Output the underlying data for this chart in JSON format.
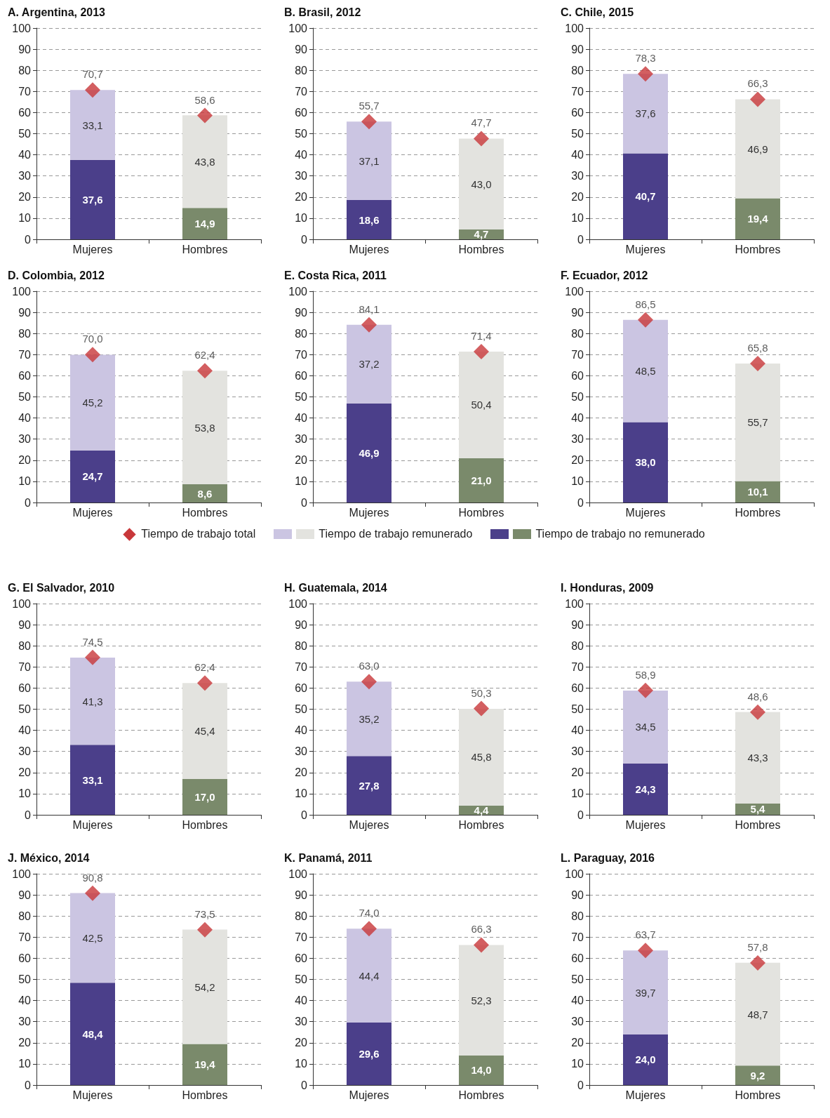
{
  "chart_data": [
    {
      "type": "bar",
      "title": "A. Argentina, 2013",
      "categories": [
        "Mujeres",
        "Hombres"
      ],
      "stacked": true,
      "grid": "y",
      "ylim": [
        0,
        100
      ],
      "yticks": [
        0,
        10,
        20,
        30,
        40,
        50,
        60,
        70,
        80,
        90,
        100
      ],
      "series": [
        {
          "colors": [
            "#4b3f8a",
            "#7a8a6b"
          ],
          "values": [
            37.6,
            14.9
          ],
          "value_labels": [
            "37,6",
            "14,9"
          ]
        },
        {
          "colors": [
            "#cbc5e2",
            "#e3e3df"
          ],
          "values": [
            33.1,
            43.8
          ],
          "value_labels": [
            "33,1",
            "43,8"
          ]
        },
        {
          "type": "scatter",
          "marker": "diamond",
          "color": "#c8373a",
          "x": [
            "Mujeres",
            "Hombres"
          ],
          "values": [
            70.7,
            58.6
          ],
          "value_labels": [
            "70,7",
            "58,6"
          ]
        }
      ]
    },
    {
      "type": "bar",
      "title": "B. Brasil, 2012",
      "categories": [
        "Mujeres",
        "Hombres"
      ],
      "stacked": true,
      "grid": "y",
      "ylim": [
        0,
        100
      ],
      "yticks": [
        0,
        10,
        20,
        30,
        40,
        50,
        60,
        70,
        80,
        90,
        100
      ],
      "series": [
        {
          "colors": [
            "#4b3f8a",
            "#7a8a6b"
          ],
          "values": [
            18.6,
            4.7
          ],
          "value_labels": [
            "18,6",
            "4,7"
          ]
        },
        {
          "colors": [
            "#cbc5e2",
            "#e3e3df"
          ],
          "values": [
            37.1,
            43.0
          ],
          "value_labels": [
            "37,1",
            "43,0"
          ]
        },
        {
          "type": "scatter",
          "marker": "diamond",
          "color": "#c8373a",
          "x": [
            "Mujeres",
            "Hombres"
          ],
          "values": [
            55.7,
            47.7
          ],
          "value_labels": [
            "55,7",
            "47,7"
          ]
        }
      ]
    },
    {
      "type": "bar",
      "title": "C. Chile, 2015",
      "categories": [
        "Mujeres",
        "Hombres"
      ],
      "stacked": true,
      "grid": "y",
      "ylim": [
        0,
        100
      ],
      "yticks": [
        0,
        10,
        20,
        30,
        40,
        50,
        60,
        70,
        80,
        90,
        100
      ],
      "series": [
        {
          "colors": [
            "#4b3f8a",
            "#7a8a6b"
          ],
          "values": [
            40.7,
            19.4
          ],
          "value_labels": [
            "40,7",
            "19,4"
          ]
        },
        {
          "colors": [
            "#cbc5e2",
            "#e3e3df"
          ],
          "values": [
            37.6,
            46.9
          ],
          "value_labels": [
            "37,6",
            "46,9"
          ]
        },
        {
          "type": "scatter",
          "marker": "diamond",
          "color": "#c8373a",
          "x": [
            "Mujeres",
            "Hombres"
          ],
          "values": [
            78.3,
            66.3
          ],
          "value_labels": [
            "78,3",
            "66,3"
          ]
        }
      ]
    },
    {
      "type": "bar",
      "title": "D. Colombia, 2012",
      "categories": [
        "Mujeres",
        "Hombres"
      ],
      "stacked": true,
      "grid": "y",
      "ylim": [
        0,
        100
      ],
      "yticks": [
        0,
        10,
        20,
        30,
        40,
        50,
        60,
        70,
        80,
        90,
        100
      ],
      "series": [
        {
          "colors": [
            "#4b3f8a",
            "#7a8a6b"
          ],
          "values": [
            24.7,
            8.6
          ],
          "value_labels": [
            "24,7",
            "8,6"
          ]
        },
        {
          "colors": [
            "#cbc5e2",
            "#e3e3df"
          ],
          "values": [
            45.2,
            53.8
          ],
          "value_labels": [
            "45,2",
            "53,8"
          ]
        },
        {
          "type": "scatter",
          "marker": "diamond",
          "color": "#c8373a",
          "x": [
            "Mujeres",
            "Hombres"
          ],
          "values": [
            70.0,
            62.4
          ],
          "value_labels": [
            "70,0",
            "62,4"
          ]
        }
      ]
    },
    {
      "type": "bar",
      "title": "E. Costa Rica, 2011",
      "categories": [
        "Mujeres",
        "Hombres"
      ],
      "stacked": true,
      "grid": "y",
      "legend": "bottom",
      "ylim": [
        0,
        100
      ],
      "yticks": [
        0,
        10,
        20,
        30,
        40,
        50,
        60,
        70,
        80,
        90,
        100
      ],
      "series": [
        {
          "name": "Tiempo de trabajo no remunerado",
          "colors": [
            "#4b3f8a",
            "#7a8a6b"
          ],
          "values": [
            46.9,
            21.0
          ],
          "value_labels": [
            "46,9",
            "21,0"
          ]
        },
        {
          "name": "Tiempo de trabajo remunerado",
          "colors": [
            "#cbc5e2",
            "#e3e3df"
          ],
          "values": [
            37.2,
            50.4
          ],
          "value_labels": [
            "37,2",
            "50,4"
          ]
        },
        {
          "type": "scatter",
          "name": "Tiempo de trabajo total",
          "marker": "diamond",
          "color": "#c8373a",
          "x": [
            "Mujeres",
            "Hombres"
          ],
          "values": [
            84.1,
            71.4
          ],
          "value_labels": [
            "84,1",
            "71,4"
          ]
        }
      ]
    },
    {
      "type": "bar",
      "title": "F. Ecuador, 2012",
      "categories": [
        "Mujeres",
        "Hombres"
      ],
      "stacked": true,
      "grid": "y",
      "ylim": [
        0,
        100
      ],
      "yticks": [
        0,
        10,
        20,
        30,
        40,
        50,
        60,
        70,
        80,
        90,
        100
      ],
      "series": [
        {
          "colors": [
            "#4b3f8a",
            "#7a8a6b"
          ],
          "values": [
            38.0,
            10.1
          ],
          "value_labels": [
            "38,0",
            "10,1"
          ]
        },
        {
          "colors": [
            "#cbc5e2",
            "#e3e3df"
          ],
          "values": [
            48.5,
            55.7
          ],
          "value_labels": [
            "48,5",
            "55,7"
          ]
        },
        {
          "type": "scatter",
          "marker": "diamond",
          "color": "#c8373a",
          "x": [
            "Mujeres",
            "Hombres"
          ],
          "values": [
            86.5,
            65.8
          ],
          "value_labels": [
            "86,5",
            "65,8"
          ]
        }
      ]
    },
    {
      "type": "bar",
      "title": "G. El Salvador, 2010",
      "categories": [
        "Mujeres",
        "Hombres"
      ],
      "stacked": true,
      "grid": "y",
      "ylim": [
        0,
        100
      ],
      "yticks": [
        0,
        10,
        20,
        30,
        40,
        50,
        60,
        70,
        80,
        90,
        100
      ],
      "series": [
        {
          "colors": [
            "#4b3f8a",
            "#7a8a6b"
          ],
          "values": [
            33.1,
            17.0
          ],
          "value_labels": [
            "33,1",
            "17,0"
          ]
        },
        {
          "colors": [
            "#cbc5e2",
            "#e3e3df"
          ],
          "values": [
            41.3,
            45.4
          ],
          "value_labels": [
            "41,3",
            "45,4"
          ]
        },
        {
          "type": "scatter",
          "marker": "diamond",
          "color": "#c8373a",
          "x": [
            "Mujeres",
            "Hombres"
          ],
          "values": [
            74.5,
            62.4
          ],
          "value_labels": [
            "74,5",
            "62,4"
          ]
        }
      ]
    },
    {
      "type": "bar",
      "title": "H. Guatemala, 2014",
      "categories": [
        "Mujeres",
        "Hombres"
      ],
      "stacked": true,
      "grid": "y",
      "ylim": [
        0,
        100
      ],
      "yticks": [
        0,
        10,
        20,
        30,
        40,
        50,
        60,
        70,
        80,
        90,
        100
      ],
      "series": [
        {
          "colors": [
            "#4b3f8a",
            "#7a8a6b"
          ],
          "values": [
            27.8,
            4.4
          ],
          "value_labels": [
            "27,8",
            "4,4"
          ]
        },
        {
          "colors": [
            "#cbc5e2",
            "#e3e3df"
          ],
          "values": [
            35.2,
            45.8
          ],
          "value_labels": [
            "35,2",
            "45,8"
          ]
        },
        {
          "type": "scatter",
          "marker": "diamond",
          "color": "#c8373a",
          "x": [
            "Mujeres",
            "Hombres"
          ],
          "values": [
            63.0,
            50.3
          ],
          "value_labels": [
            "63,0",
            "50,3"
          ]
        }
      ]
    },
    {
      "type": "bar",
      "title": "I. Honduras, 2009",
      "categories": [
        "Mujeres",
        "Hombres"
      ],
      "stacked": true,
      "grid": "y",
      "ylim": [
        0,
        100
      ],
      "yticks": [
        0,
        10,
        20,
        30,
        40,
        50,
        60,
        70,
        80,
        90,
        100
      ],
      "series": [
        {
          "colors": [
            "#4b3f8a",
            "#7a8a6b"
          ],
          "values": [
            24.3,
            5.4
          ],
          "value_labels": [
            "24,3",
            "5,4"
          ]
        },
        {
          "colors": [
            "#cbc5e2",
            "#e3e3df"
          ],
          "values": [
            34.5,
            43.3
          ],
          "value_labels": [
            "34,5",
            "43,3"
          ]
        },
        {
          "type": "scatter",
          "marker": "diamond",
          "color": "#c8373a",
          "x": [
            "Mujeres",
            "Hombres"
          ],
          "values": [
            58.9,
            48.6
          ],
          "value_labels": [
            "58,9",
            "48,6"
          ]
        }
      ]
    },
    {
      "type": "bar",
      "title": "J. México, 2014",
      "categories": [
        "Mujeres",
        "Hombres"
      ],
      "stacked": true,
      "grid": "y",
      "ylim": [
        0,
        100
      ],
      "yticks": [
        0,
        10,
        20,
        30,
        40,
        50,
        60,
        70,
        80,
        90,
        100
      ],
      "series": [
        {
          "colors": [
            "#4b3f8a",
            "#7a8a6b"
          ],
          "values": [
            48.4,
            19.4
          ],
          "value_labels": [
            "48,4",
            "19,4"
          ]
        },
        {
          "colors": [
            "#cbc5e2",
            "#e3e3df"
          ],
          "values": [
            42.5,
            54.2
          ],
          "value_labels": [
            "42,5",
            "54,2"
          ]
        },
        {
          "type": "scatter",
          "marker": "diamond",
          "color": "#c8373a",
          "x": [
            "Mujeres",
            "Hombres"
          ],
          "values": [
            90.8,
            73.5
          ],
          "value_labels": [
            "90,8",
            "73,5"
          ]
        }
      ]
    },
    {
      "type": "bar",
      "title": "K. Panamá, 2011",
      "categories": [
        "Mujeres",
        "Hombres"
      ],
      "stacked": true,
      "grid": "y",
      "ylim": [
        0,
        100
      ],
      "yticks": [
        0,
        10,
        20,
        30,
        40,
        50,
        60,
        70,
        80,
        90,
        100
      ],
      "series": [
        {
          "colors": [
            "#4b3f8a",
            "#7a8a6b"
          ],
          "values": [
            29.6,
            14.0
          ],
          "value_labels": [
            "29,6",
            "14,0"
          ]
        },
        {
          "colors": [
            "#cbc5e2",
            "#e3e3df"
          ],
          "values": [
            44.4,
            52.3
          ],
          "value_labels": [
            "44,4",
            "52,3"
          ]
        },
        {
          "type": "scatter",
          "marker": "diamond",
          "color": "#c8373a",
          "x": [
            "Mujeres",
            "Hombres"
          ],
          "values": [
            74.0,
            66.3
          ],
          "value_labels": [
            "74,0",
            "66,3"
          ]
        }
      ]
    },
    {
      "type": "bar",
      "title": "L. Paraguay, 2016",
      "categories": [
        "Mujeres",
        "Hombres"
      ],
      "stacked": true,
      "grid": "y",
      "ylim": [
        0,
        100
      ],
      "yticks": [
        0,
        10,
        20,
        30,
        40,
        50,
        60,
        70,
        80,
        90,
        100
      ],
      "series": [
        {
          "colors": [
            "#4b3f8a",
            "#7a8a6b"
          ],
          "values": [
            24.0,
            9.2
          ],
          "value_labels": [
            "24,0",
            "9,2"
          ]
        },
        {
          "colors": [
            "#cbc5e2",
            "#e3e3df"
          ],
          "values": [
            39.7,
            48.7
          ],
          "value_labels": [
            "39,7",
            "48,7"
          ]
        },
        {
          "type": "scatter",
          "marker": "diamond",
          "color": "#c8373a",
          "x": [
            "Mujeres",
            "Hombres"
          ],
          "values": [
            63.7,
            57.8
          ],
          "value_labels": [
            "63,7",
            "57,8"
          ]
        }
      ]
    }
  ]
}
